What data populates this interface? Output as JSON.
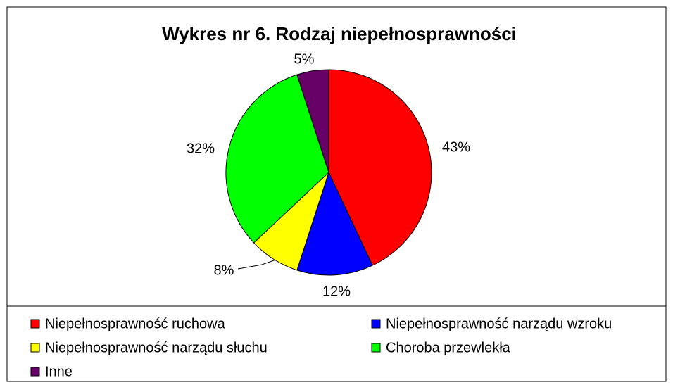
{
  "chart_data": {
    "type": "pie",
    "title": "Wykres nr 6. Rodzaj niepełnosprawności",
    "categories": [
      "Niepełnosprawność ruchowa",
      "Niepełnosprawność narządu wzroku",
      "Niepełnosprawność narządu słuchu",
      "Choroba przewlekła",
      "Inne"
    ],
    "values": [
      43,
      12,
      8,
      32,
      5
    ],
    "value_labels": [
      "43%",
      "12%",
      "8%",
      "32%",
      "5%"
    ],
    "colors": [
      "#ff0000",
      "#0000ff",
      "#ffff00",
      "#00ff00",
      "#660066"
    ],
    "legend": "bottom"
  }
}
